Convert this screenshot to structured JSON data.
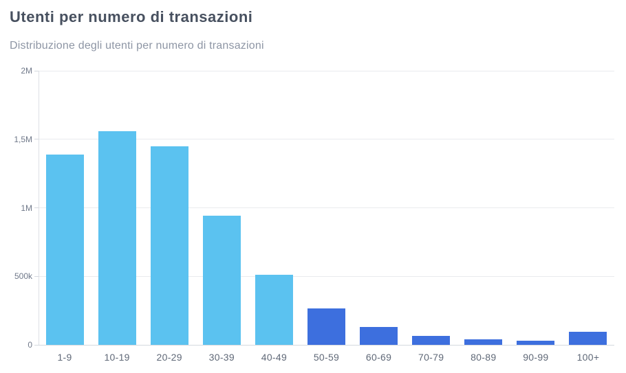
{
  "chart_data": {
    "type": "bar",
    "title": "Utenti per numero di transazioni",
    "subtitle": "Distribuzione degli utenti per numero di transazioni",
    "categories": [
      "1-9",
      "10-19",
      "20-29",
      "30-39",
      "40-49",
      "50-59",
      "60-69",
      "70-79",
      "80-89",
      "90-99",
      "100+"
    ],
    "values": [
      1390000,
      1560000,
      1450000,
      940000,
      510000,
      265000,
      130000,
      65000,
      40000,
      30000,
      95000
    ],
    "bar_colors": [
      "#5bc2f0",
      "#5bc2f0",
      "#5bc2f0",
      "#5bc2f0",
      "#5bc2f0",
      "#3d6fde",
      "#3d6fde",
      "#3d6fde",
      "#3d6fde",
      "#3d6fde",
      "#3d6fde"
    ],
    "ytick_labels": [
      "2M",
      "1,5M",
      "1M",
      "500k",
      "0"
    ],
    "ylim": [
      0,
      2000000
    ],
    "xlabel": "",
    "ylabel": "",
    "grid": "horizontal",
    "legend": "none"
  }
}
